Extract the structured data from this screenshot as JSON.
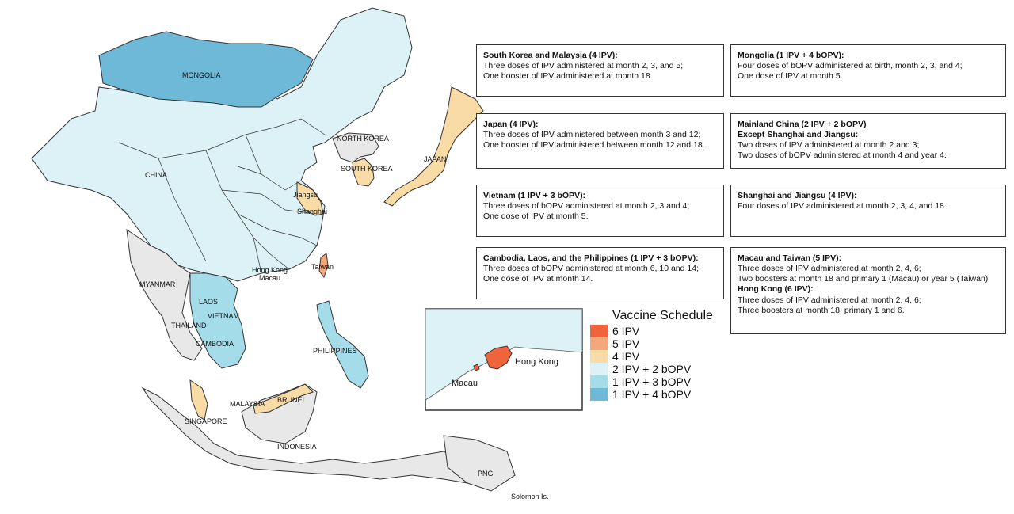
{
  "colors": {
    "six_ipv": "#f0643c",
    "five_ipv": "#f4a77b",
    "four_ipv": "#f9dba6",
    "two_ipv_two_bopv": "#dcf2f7",
    "one_ipv_three_bopv": "#a4dcea",
    "one_ipv_four_bopv": "#6fb9d8",
    "no_data": "#e8e8e8",
    "border": "#333333"
  },
  "legend": {
    "title": "Vaccine Schedule",
    "items": [
      {
        "label": "6 IPV",
        "color_key": "six_ipv"
      },
      {
        "label": "5 IPV",
        "color_key": "five_ipv"
      },
      {
        "label": "4 IPV",
        "color_key": "four_ipv"
      },
      {
        "label": "2 IPV + 2 bOPV",
        "color_key": "two_ipv_two_bopv"
      },
      {
        "label": "1 IPV + 3 bOPV",
        "color_key": "one_ipv_three_bopv"
      },
      {
        "label": "1 IPV + 4 bOPV",
        "color_key": "one_ipv_four_bopv"
      }
    ]
  },
  "map_labels": {
    "mongolia": "MONGOLIA",
    "china": "CHINA",
    "north_korea": "NORTH KOREA",
    "south_korea": "SOUTH KOREA",
    "japan": "JAPAN",
    "jiangsu": "Jiangsu",
    "shanghai": "Shanghai",
    "hong_kong": "Hong Kong",
    "macau": "Macau",
    "taiwan": "Taiwan",
    "myanmar": "MYANMAR",
    "laos": "LAOS",
    "vietnam": "VIETNAM",
    "thailand": "THAILAND",
    "cambodia": "CAMBODIA",
    "philippines": "PHILIPPINES",
    "malaysia": "MALAYSIA",
    "brunei": "BRUNEI",
    "singapore": "SINGAPORE",
    "indonesia": "INDONESIA",
    "png": "PNG",
    "solomon": "Solomon Is."
  },
  "inset": {
    "hong_kong": "Hong Kong",
    "macau": "Macau"
  },
  "boxes": {
    "korea_malaysia": {
      "title": "South Korea and Malaysia (4 IPV):",
      "lines": [
        "Three doses of IPV administered at month 2, 3, and 5;",
        "One booster of IPV administered at month 18."
      ]
    },
    "mongolia": {
      "title": "Mongolia (1 IPV + 4 bOPV):",
      "lines": [
        "Four doses of bOPV administered at birth, month 2, 3, and 4;",
        "One dose of IPV at month 5."
      ]
    },
    "japan": {
      "title": "Japan (4 IPV):",
      "lines": [
        "Three doses of IPV administered between month 3 and 12;",
        "One booster of IPV administered between month 12 and 18."
      ]
    },
    "mainland_china": {
      "title": "Mainland China (2 IPV + 2 bOPV)",
      "title2": "Except Shanghai and Jiangsu:",
      "lines": [
        "Two doses of IPV administered at month 2 and 3;",
        "Two doses of bOPV administered at month 4 and year 4."
      ]
    },
    "vietnam": {
      "title": "Vietnam (1 IPV + 3 bOPV):",
      "lines": [
        "Three doses of bOPV administered at month 2, 3 and 4;",
        "One dose of IPV at month 5."
      ]
    },
    "shanghai_jiangsu": {
      "title": "Shanghai and Jiangsu (4 IPV):",
      "lines": [
        "Four doses of IPV administered at month 2, 3, 4, and 18."
      ]
    },
    "cambodia_laos_ph": {
      "title": "Cambodia, Laos, and the Philippines (1 IPV + 3 bOPV):",
      "lines": [
        "Three doses of bOPV administered at month 6, 10 and 14;",
        "One dose of IPV at month 14."
      ]
    },
    "macau_taiwan_hk": {
      "title": "Macau and Taiwan (5 IPV):",
      "lines": [
        "Three doses of IPV administered at month 2, 4, 6;",
        "Two boosters at month 18 and primary 1 (Macau) or year 5 (Taiwan)"
      ],
      "title2": "Hong Kong (6 IPV):",
      "lines2": [
        "Three doses of IPV administered at month 2, 4, 6;",
        "Three boosters at month 18, primary 1 and 6."
      ]
    }
  }
}
